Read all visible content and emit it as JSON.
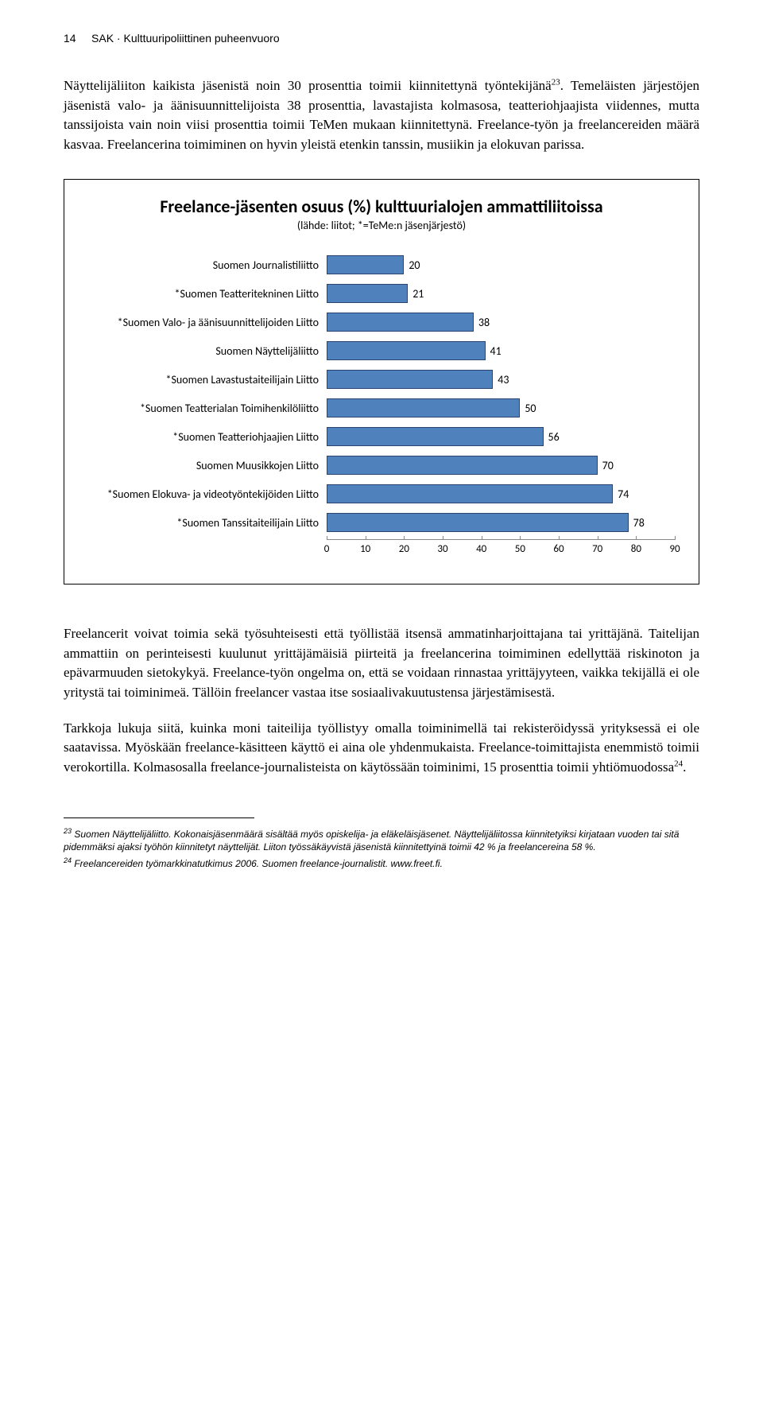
{
  "header": {
    "page_num": "14",
    "running_title": "SAK · Kulttuuripoliittinen puheenvuoro"
  },
  "paragraphs": {
    "p1a": "Näyttelijäliiton kaikista jäsenistä noin 30 prosenttia toimii kiinnitettynä työntekijänä",
    "p1_fn": "23",
    "p1b": ". Temeläisten järjestöjen jäsenistä valo- ja äänisuunnittelijoista 38 prosenttia, lavastajista kolmasosa, teatteriohjaajista viidennes, mutta tanssijoista vain noin viisi prosenttia toimii TeMen mukaan kiinnitettynä. Freelance-työn ja freelancereiden määrä kasvaa. Freelancerina toimiminen on hyvin yleistä etenkin tanssin, musiikin ja elokuvan parissa.",
    "p2": "Freelancerit voivat toimia sekä työsuhteisesti että työllistää itsensä ammatinharjoittajana tai yrittäjänä. Taitelijan ammattiin on perinteisesti kuulunut yrittäjämäisiä piirteitä ja freelancerina toimiminen edellyttää riskinoton ja epävarmuuden sietokykyä. Freelance-työn ongelma on, että se voidaan rinnastaa yrittäjyyteen, vaikka tekijällä ei ole yritystä tai toiminimeä. Tällöin freelancer vastaa itse sosiaalivakuutustensa järjestämisestä.",
    "p3a": "Tarkkoja lukuja siitä, kuinka moni taiteilija työllistyy omalla toiminimellä tai rekisteröidyssä yrityksessä ei ole saatavissa. Myöskään freelance-käsitteen käyttö ei aina ole yhdenmukaista. Freelance-toimittajista enemmistö toimii verokortilla. Kolmasosalla freelance-journalisteista on käytössään toiminimi, 15 prosenttia toimii yhtiömuodossa",
    "p3_fn": "24",
    "p3b": "."
  },
  "chart": {
    "title_line": "Freelance-jäsenten osuus (%) kulttuurialojen ammattiliitoissa",
    "subtitle": "(lähde: liitot; *=TeMe:n jäsenjärjestö)",
    "categories": [
      "Suomen Journalistiliitto",
      "*Suomen Teatteritekninen Liitto",
      "*Suomen Valo- ja äänisuunnittelijoiden Liitto",
      "Suomen Näyttelijäliitto",
      "*Suomen Lavastustaiteilijain Liitto",
      "*Suomen Teatterialan Toimihenkilöliitto",
      "*Suomen Teatteriohjaajien Liitto",
      "Suomen Muusikkojen Liitto",
      "*Suomen Elokuva- ja videotyöntekijöiden Liitto",
      "*Suomen Tanssitaiteilijain Liitto"
    ],
    "values": [
      20,
      21,
      38,
      41,
      43,
      50,
      56,
      70,
      74,
      78
    ],
    "bar_color": "#4f81bd",
    "bar_border": "#2a4572",
    "xmax": 90,
    "xstep": 10,
    "label_fontsize": 14,
    "title_fontsize": 22
  },
  "footnotes": {
    "fn23_num": "23",
    "fn23_text": " Suomen Näyttelijäliitto. Kokonaisjäsenmäärä sisältää myös opiskelija- ja eläkeläisjäsenet. Näyttelijäliitossa kiinnitetyiksi kirjataan vuoden tai sitä pidemmäksi ajaksi työhön kiinnitetyt näyttelijät. Liiton työssäkäyvistä jäsenistä kiinnitettyinä toimii 42 % ja freelancereina 58 %.",
    "fn24_num": "24",
    "fn24_text": " Freelancereiden työmarkkinatutkimus 2006. Suomen freelance-journalistit. www.freet.fi."
  }
}
